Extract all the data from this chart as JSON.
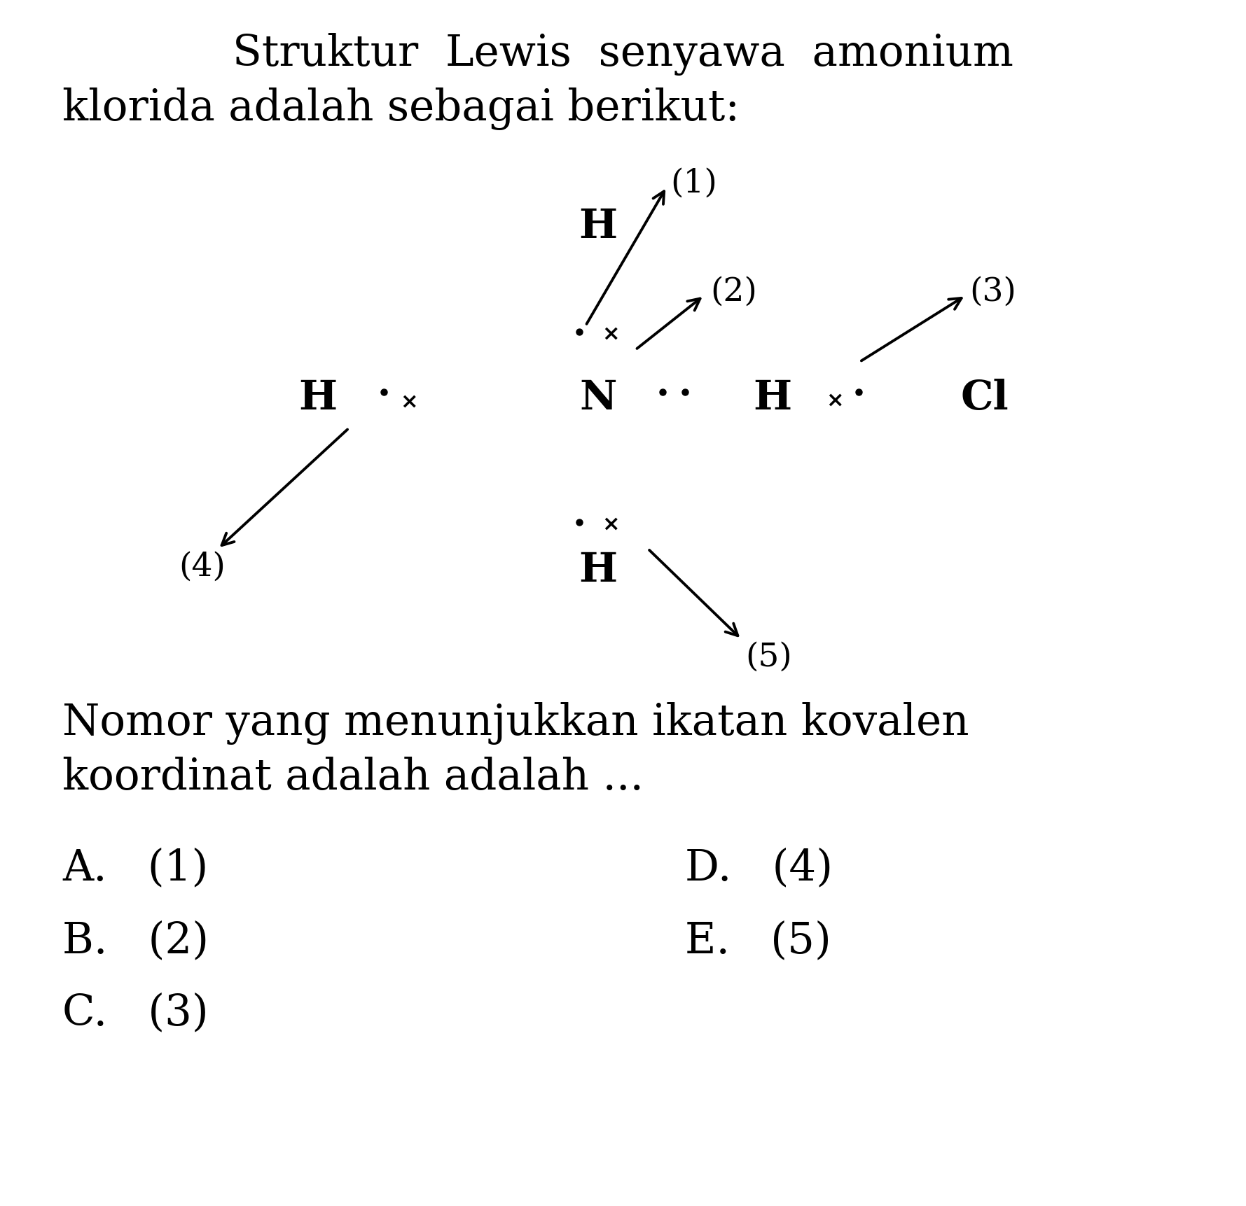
{
  "title_line1": "Struktur  Lewis  senyawa  amonium",
  "title_line2": "klorida adalah sebagai berikut:",
  "question_line1": "Nomor yang menunjukkan ikatan kovalen",
  "question_line2": "koordinat adalah adalah ...",
  "answer_A": "A.   (1)",
  "answer_B": "B.   (2)",
  "answer_C": "C.   (3)",
  "answer_D": "D.   (4)",
  "answer_E": "E.   (5)",
  "bg_color": "#ffffff",
  "text_color": "#000000"
}
